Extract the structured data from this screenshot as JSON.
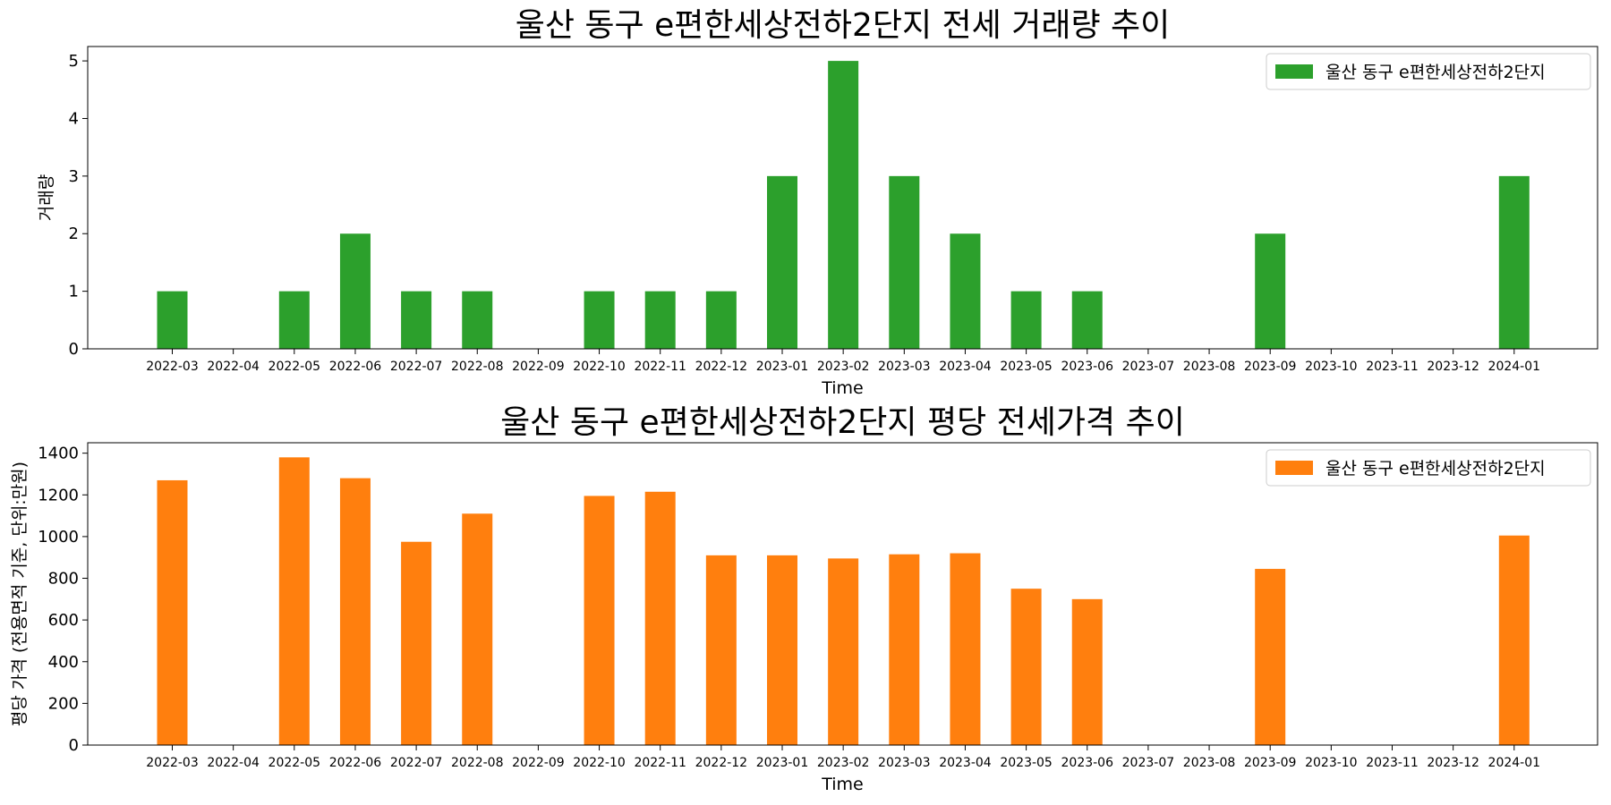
{
  "chart_data": [
    {
      "type": "bar",
      "title": "울산 동구 e편한세상전하2단지 전세 거래량 추이",
      "xlabel": "Time",
      "ylabel": "거래량",
      "ylim": [
        0,
        5.25
      ],
      "yticks": [
        0,
        1,
        2,
        3,
        4,
        5
      ],
      "color": "#2ca02c",
      "legend": "울산 동구 e편한세상전하2단지",
      "legend_position": "top-right",
      "categories": [
        "2022-03",
        "2022-04",
        "2022-05",
        "2022-06",
        "2022-07",
        "2022-08",
        "2022-09",
        "2022-10",
        "2022-11",
        "2022-12",
        "2023-01",
        "2023-02",
        "2023-03",
        "2023-04",
        "2023-05",
        "2023-06",
        "2023-07",
        "2023-08",
        "2023-09",
        "2023-10",
        "2023-11",
        "2023-12",
        "2024-01"
      ],
      "values": [
        1,
        0,
        1,
        2,
        1,
        1,
        0,
        1,
        1,
        1,
        3,
        5,
        3,
        2,
        1,
        1,
        0,
        0,
        2,
        0,
        0,
        0,
        3
      ]
    },
    {
      "type": "bar",
      "title": "울산 동구 e편한세상전하2단지 평당 전세가격 추이",
      "xlabel": "Time",
      "ylabel": "평당 가격 (전용면적 기준, 단위:만원)",
      "ylim": [
        0,
        1450
      ],
      "yticks": [
        0,
        200,
        400,
        600,
        800,
        1000,
        1200,
        1400
      ],
      "color": "#ff7f0e",
      "legend": "울산 동구 e편한세상전하2단지",
      "legend_position": "top-right",
      "categories": [
        "2022-03",
        "2022-04",
        "2022-05",
        "2022-06",
        "2022-07",
        "2022-08",
        "2022-09",
        "2022-10",
        "2022-11",
        "2022-12",
        "2023-01",
        "2023-02",
        "2023-03",
        "2023-04",
        "2023-05",
        "2023-06",
        "2023-07",
        "2023-08",
        "2023-09",
        "2023-10",
        "2023-11",
        "2023-12",
        "2024-01"
      ],
      "values": [
        1270,
        0,
        1380,
        1280,
        975,
        1110,
        0,
        1195,
        1215,
        910,
        910,
        895,
        915,
        920,
        750,
        700,
        0,
        0,
        845,
        0,
        0,
        0,
        1005
      ]
    }
  ]
}
